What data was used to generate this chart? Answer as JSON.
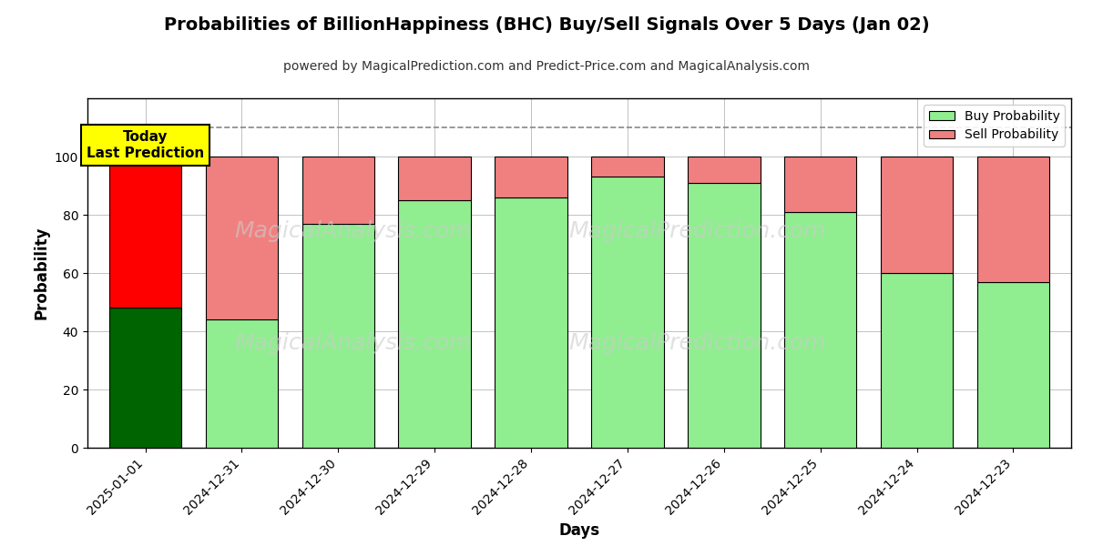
{
  "title": "Probabilities of BillionHappiness (BHC) Buy/Sell Signals Over 5 Days (Jan 02)",
  "subtitle": "powered by MagicalPrediction.com and Predict-Price.com and MagicalAnalysis.com",
  "xlabel": "Days",
  "ylabel": "Probability",
  "days": [
    "2025-01-01",
    "2024-12-31",
    "2024-12-30",
    "2024-12-29",
    "2024-12-28",
    "2024-12-27",
    "2024-12-26",
    "2024-12-25",
    "2024-12-24",
    "2024-12-23"
  ],
  "buy_values": [
    48,
    44,
    77,
    85,
    86,
    93,
    91,
    81,
    60,
    57
  ],
  "sell_values": [
    52,
    56,
    23,
    15,
    14,
    7,
    9,
    19,
    40,
    43
  ],
  "today_buy_color": "#006400",
  "today_sell_color": "#FF0000",
  "buy_color": "#90EE90",
  "sell_color": "#F08080",
  "today_label": "Today\nLast Prediction",
  "today_label_bg": "#FFFF00",
  "legend_buy_label": "Buy Probability",
  "legend_sell_label": "Sell Probability",
  "ylim": [
    0,
    120
  ],
  "yticks": [
    0,
    20,
    40,
    60,
    80,
    100
  ],
  "dashed_line_y": 110,
  "watermark_texts": [
    "MagicalAnalysis.com",
    "MagicalPrediction.com"
  ],
  "bg_color": "#ffffff",
  "grid_color": "#aaaaaa",
  "bar_edge_color": "#000000",
  "bar_width": 0.75
}
